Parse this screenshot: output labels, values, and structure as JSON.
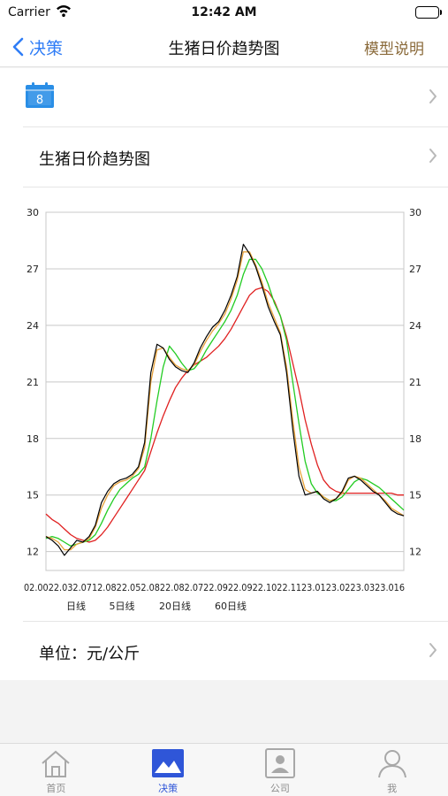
{
  "status_bar": {
    "carrier": "Carrier",
    "time": "12:42 AM"
  },
  "nav": {
    "back_label": "决策",
    "title": "生猪日价趋势图",
    "right_label": "模型说明"
  },
  "date_row": {
    "calendar_day": "8"
  },
  "title_row": {
    "label": "生猪日价趋势图"
  },
  "unit_row": {
    "label": "单位：元/公斤"
  },
  "chart_data": {
    "type": "line",
    "title": "",
    "ylim": [
      11,
      30
    ],
    "y_ticks": [
      "30",
      "27",
      "24",
      "21",
      "18",
      "15",
      "12"
    ],
    "x_tick_labels_overlapping": "02.0022.032.0712.0822.052.0822.082.0722.0922.0922.1022.1123.0123.0223.0323.016",
    "legend": [
      "日线",
      "5日线",
      "20日线",
      "60日线"
    ],
    "series_colors": {
      "日线": "#000000",
      "5日线": "#e8a23a",
      "20日线": "#22cc22",
      "60日线": "#e02020"
    },
    "series": [
      {
        "name": "日线",
        "values": [
          12.8,
          12.6,
          12.3,
          11.8,
          12.2,
          12.6,
          12.5,
          12.8,
          13.4,
          14.6,
          15.2,
          15.6,
          15.8,
          15.9,
          16.1,
          16.5,
          17.8,
          21.5,
          23.0,
          22.8,
          22.2,
          21.8,
          21.6,
          21.5,
          22.0,
          22.8,
          23.4,
          23.9,
          24.2,
          24.8,
          25.6,
          26.6,
          28.3,
          27.8,
          27.1,
          26.1,
          25.0,
          24.2,
          23.5,
          21.5,
          18.5,
          16.0,
          15.0,
          15.1,
          15.2,
          14.8,
          14.6,
          14.8,
          15.2,
          15.9,
          16.0,
          15.8,
          15.5,
          15.2,
          15.0,
          14.6,
          14.2,
          14.0,
          13.9
        ]
      },
      {
        "name": "5日线",
        "values": [
          12.8,
          12.7,
          12.5,
          12.1,
          12.1,
          12.4,
          12.5,
          12.7,
          13.3,
          14.3,
          15.0,
          15.5,
          15.7,
          15.8,
          16.0,
          16.4,
          17.5,
          21.0,
          22.7,
          22.8,
          22.3,
          21.9,
          21.7,
          21.6,
          21.9,
          22.6,
          23.2,
          23.7,
          24.1,
          24.6,
          25.4,
          26.4,
          27.9,
          27.9,
          27.2,
          26.3,
          25.2,
          24.4,
          23.6,
          21.8,
          19.0,
          16.5,
          15.3,
          15.1,
          15.2,
          14.9,
          14.7,
          14.8,
          15.1,
          15.8,
          16.0,
          15.9,
          15.6,
          15.3,
          15.0,
          14.7,
          14.3,
          14.1,
          13.9
        ]
      },
      {
        "name": "20日线",
        "values": [
          12.7,
          12.8,
          12.7,
          12.5,
          12.3,
          12.4,
          12.5,
          12.6,
          12.9,
          13.5,
          14.2,
          14.8,
          15.3,
          15.6,
          15.9,
          16.1,
          16.5,
          18.0,
          20.0,
          21.8,
          22.9,
          22.5,
          22.0,
          21.6,
          21.7,
          22.1,
          22.7,
          23.2,
          23.7,
          24.2,
          24.8,
          25.6,
          26.7,
          27.5,
          27.5,
          27.0,
          26.2,
          25.2,
          24.5,
          23.2,
          21.0,
          18.8,
          16.8,
          15.6,
          15.1,
          14.9,
          14.7,
          14.7,
          14.9,
          15.3,
          15.7,
          15.9,
          15.8,
          15.6,
          15.4,
          15.1,
          14.8,
          14.5,
          14.2
        ]
      },
      {
        "name": "60日线",
        "values": [
          14.0,
          13.7,
          13.5,
          13.2,
          12.9,
          12.7,
          12.6,
          12.5,
          12.6,
          12.9,
          13.3,
          13.8,
          14.3,
          14.8,
          15.3,
          15.8,
          16.3,
          17.3,
          18.3,
          19.2,
          20.0,
          20.7,
          21.2,
          21.6,
          21.9,
          22.1,
          22.3,
          22.6,
          22.9,
          23.3,
          23.8,
          24.4,
          25.0,
          25.6,
          25.9,
          26.0,
          25.8,
          25.3,
          24.5,
          23.4,
          22.0,
          20.6,
          19.0,
          17.7,
          16.6,
          15.8,
          15.4,
          15.2,
          15.1,
          15.1,
          15.1,
          15.1,
          15.1,
          15.1,
          15.1,
          15.1,
          15.1,
          15.0,
          15.0
        ]
      }
    ]
  },
  "tabs": [
    {
      "label": "首页",
      "active": false
    },
    {
      "label": "决策",
      "active": true
    },
    {
      "label": "公司",
      "active": false
    },
    {
      "label": "我",
      "active": false
    }
  ]
}
